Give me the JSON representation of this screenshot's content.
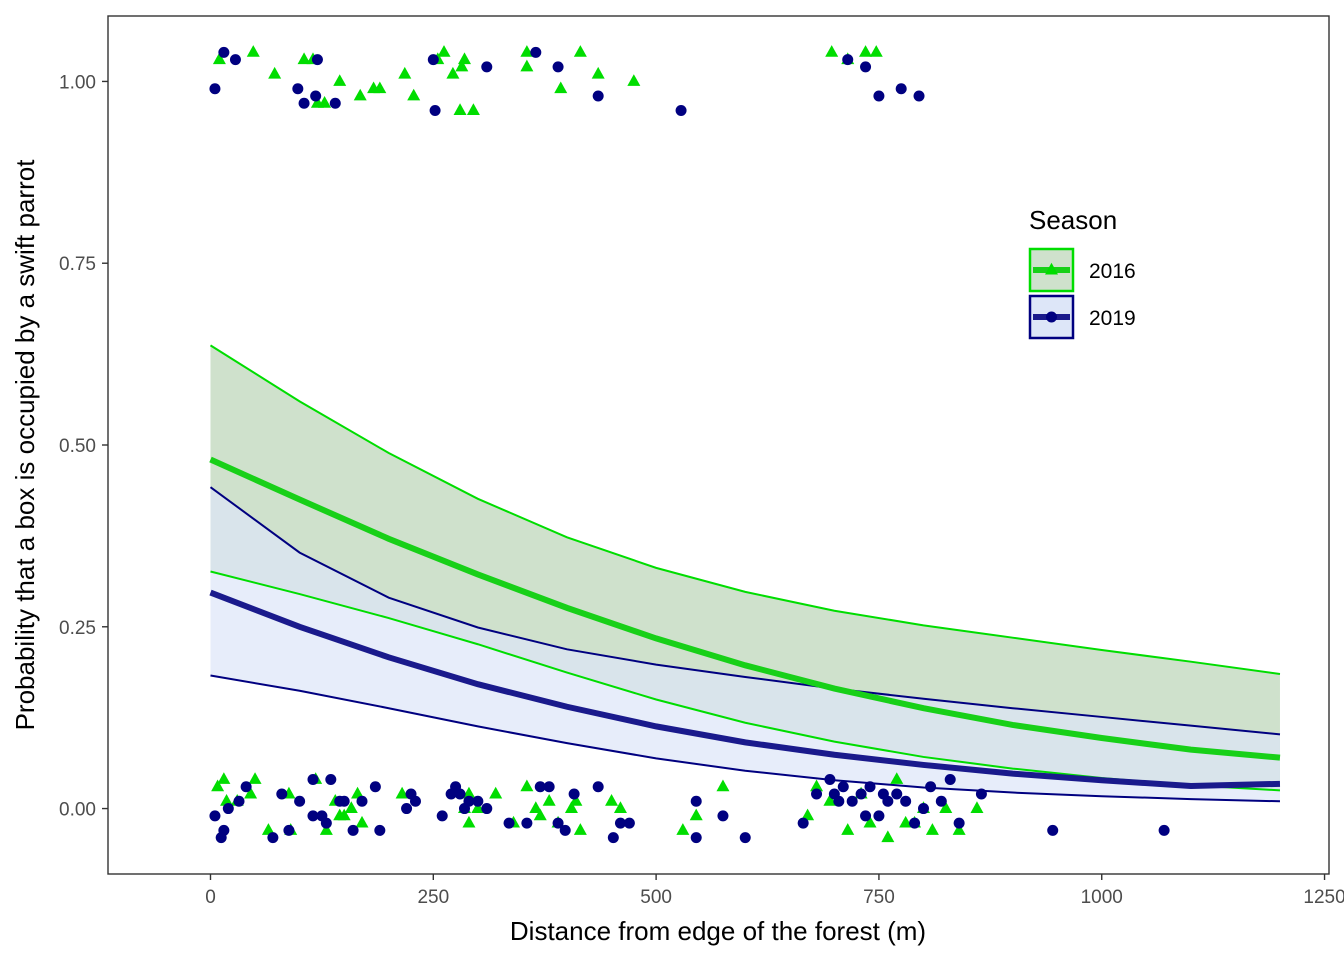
{
  "chart_data": {
    "type": "line",
    "xlabel": "Distance from edge of the forest (m)",
    "ylabel": "Probability that a box is occupied by a swift parrot",
    "xlim": [
      -115,
      1255
    ],
    "ylim": [
      -0.09,
      1.09
    ],
    "x_ticks": [
      0,
      250,
      500,
      750,
      1000,
      1250
    ],
    "x_tick_labels": [
      "0",
      "250",
      "500",
      "750",
      "1000",
      "1250"
    ],
    "y_ticks": [
      0,
      0.25,
      0.5,
      0.75,
      1
    ],
    "y_tick_labels": [
      "0.00",
      "0.25",
      "0.50",
      "0.75",
      "1.00"
    ],
    "grid": false,
    "legend": {
      "title": "Season",
      "position": "right",
      "entries": [
        "2016",
        "2019"
      ]
    },
    "series": [
      {
        "name": "2016",
        "color": "#00dd00",
        "ribbon_fill": "#cfe1cc",
        "marker": "triangle",
        "fit": {
          "x": [
            0,
            100,
            200,
            300,
            400,
            500,
            600,
            700,
            800,
            900,
            1000,
            1100,
            1200
          ],
          "y": [
            0.48,
            0.425,
            0.371,
            0.322,
            0.276,
            0.234,
            0.197,
            0.165,
            0.138,
            0.115,
            0.097,
            0.081,
            0.07
          ],
          "lower": [
            0.326,
            0.295,
            0.262,
            0.226,
            0.187,
            0.15,
            0.118,
            0.092,
            0.071,
            0.055,
            0.042,
            0.032,
            0.025
          ],
          "upper": [
            0.637,
            0.56,
            0.489,
            0.426,
            0.373,
            0.331,
            0.298,
            0.272,
            0.252,
            0.235,
            0.218,
            0.202,
            0.185
          ]
        },
        "points": [
          [
            10,
            1.03
          ],
          [
            48,
            1.04
          ],
          [
            72,
            1.01
          ],
          [
            105,
            1.03
          ],
          [
            115,
            1.03
          ],
          [
            120,
            0.97
          ],
          [
            128,
            0.97
          ],
          [
            145,
            1.0
          ],
          [
            168,
            0.98
          ],
          [
            183,
            0.99
          ],
          [
            190,
            0.99
          ],
          [
            218,
            1.01
          ],
          [
            228,
            0.98
          ],
          [
            255,
            1.03
          ],
          [
            262,
            1.04
          ],
          [
            272,
            1.01
          ],
          [
            280,
            0.96
          ],
          [
            282,
            1.02
          ],
          [
            285,
            1.03
          ],
          [
            295,
            0.96
          ],
          [
            355,
            1.04
          ],
          [
            355,
            1.02
          ],
          [
            393,
            0.99
          ],
          [
            415,
            1.04
          ],
          [
            435,
            1.01
          ],
          [
            475,
            1.0
          ],
          [
            697,
            1.04
          ],
          [
            715,
            1.03
          ],
          [
            735,
            1.04
          ],
          [
            747,
            1.04
          ],
          [
            8,
            0.03
          ],
          [
            15,
            0.04
          ],
          [
            18,
            0.01
          ],
          [
            30,
            0.01
          ],
          [
            45,
            0.02
          ],
          [
            50,
            0.04
          ],
          [
            65,
            -0.03
          ],
          [
            88,
            0.02
          ],
          [
            90,
            -0.03
          ],
          [
            118,
            0.04
          ],
          [
            130,
            -0.03
          ],
          [
            140,
            0.01
          ],
          [
            145,
            -0.01
          ],
          [
            150,
            -0.01
          ],
          [
            158,
            0.0
          ],
          [
            165,
            0.02
          ],
          [
            170,
            -0.02
          ],
          [
            215,
            0.02
          ],
          [
            285,
            0.0
          ],
          [
            290,
            -0.02
          ],
          [
            290,
            0.02
          ],
          [
            300,
            0.0
          ],
          [
            320,
            0.02
          ],
          [
            340,
            -0.02
          ],
          [
            355,
            0.03
          ],
          [
            365,
            0.0
          ],
          [
            370,
            -0.01
          ],
          [
            380,
            0.01
          ],
          [
            390,
            -0.02
          ],
          [
            405,
            0.0
          ],
          [
            410,
            0.01
          ],
          [
            415,
            -0.03
          ],
          [
            450,
            0.01
          ],
          [
            460,
            0.0
          ],
          [
            530,
            -0.03
          ],
          [
            545,
            -0.01
          ],
          [
            575,
            0.03
          ],
          [
            670,
            -0.01
          ],
          [
            680,
            0.03
          ],
          [
            695,
            0.01
          ],
          [
            715,
            -0.03
          ],
          [
            730,
            0.02
          ],
          [
            740,
            -0.02
          ],
          [
            760,
            -0.04
          ],
          [
            770,
            0.04
          ],
          [
            780,
            -0.02
          ],
          [
            790,
            -0.02
          ],
          [
            800,
            0.0
          ],
          [
            810,
            -0.03
          ],
          [
            825,
            0.0
          ],
          [
            840,
            -0.03
          ],
          [
            860,
            0.0
          ]
        ]
      },
      {
        "name": "2019",
        "color": "#000080",
        "fit_color": "#1a1a8c",
        "ribbon_fill": "#dde6f8",
        "marker": "circle",
        "fit": {
          "x": [
            0,
            100,
            200,
            300,
            400,
            500,
            600,
            700,
            800,
            900,
            1000,
            1100,
            1200
          ],
          "y": [
            0.297,
            0.25,
            0.208,
            0.171,
            0.14,
            0.113,
            0.091,
            0.074,
            0.06,
            0.048,
            0.039,
            0.031,
            0.034
          ],
          "lower": [
            0.183,
            0.162,
            0.138,
            0.113,
            0.09,
            0.069,
            0.052,
            0.039,
            0.029,
            0.022,
            0.017,
            0.013,
            0.01
          ],
          "upper": [
            0.442,
            0.352,
            0.29,
            0.249,
            0.219,
            0.198,
            0.181,
            0.165,
            0.151,
            0.138,
            0.126,
            0.114,
            0.102
          ]
        },
        "points": [
          [
            15,
            1.04
          ],
          [
            28,
            1.03
          ],
          [
            5,
            0.99
          ],
          [
            120,
            1.03
          ],
          [
            98,
            0.99
          ],
          [
            105,
            0.97
          ],
          [
            118,
            0.98
          ],
          [
            140,
            0.97
          ],
          [
            250,
            1.03
          ],
          [
            252,
            0.96
          ],
          [
            310,
            1.02
          ],
          [
            365,
            1.04
          ],
          [
            390,
            1.02
          ],
          [
            435,
            0.98
          ],
          [
            528,
            0.96
          ],
          [
            715,
            1.03
          ],
          [
            735,
            1.02
          ],
          [
            750,
            0.98
          ],
          [
            775,
            0.99
          ],
          [
            795,
            0.98
          ],
          [
            5,
            -0.01
          ],
          [
            12,
            -0.04
          ],
          [
            15,
            -0.03
          ],
          [
            20,
            0.0
          ],
          [
            32,
            0.01
          ],
          [
            40,
            0.03
          ],
          [
            70,
            -0.04
          ],
          [
            80,
            0.02
          ],
          [
            88,
            -0.03
          ],
          [
            100,
            0.01
          ],
          [
            115,
            0.04
          ],
          [
            115,
            -0.01
          ],
          [
            125,
            -0.01
          ],
          [
            130,
            -0.02
          ],
          [
            135,
            0.04
          ],
          [
            145,
            0.01
          ],
          [
            150,
            0.01
          ],
          [
            160,
            -0.03
          ],
          [
            170,
            0.01
          ],
          [
            185,
            0.03
          ],
          [
            190,
            -0.03
          ],
          [
            220,
            0.0
          ],
          [
            225,
            0.02
          ],
          [
            230,
            0.01
          ],
          [
            260,
            -0.01
          ],
          [
            270,
            0.02
          ],
          [
            275,
            0.03
          ],
          [
            280,
            0.02
          ],
          [
            285,
            0.0
          ],
          [
            290,
            0.01
          ],
          [
            300,
            0.01
          ],
          [
            310,
            0.0
          ],
          [
            335,
            -0.02
          ],
          [
            355,
            -0.02
          ],
          [
            370,
            0.03
          ],
          [
            380,
            0.03
          ],
          [
            390,
            -0.02
          ],
          [
            398,
            -0.03
          ],
          [
            408,
            0.02
          ],
          [
            435,
            0.03
          ],
          [
            452,
            -0.04
          ],
          [
            460,
            -0.02
          ],
          [
            470,
            -0.02
          ],
          [
            545,
            0.01
          ],
          [
            545,
            -0.04
          ],
          [
            575,
            -0.01
          ],
          [
            600,
            -0.04
          ],
          [
            665,
            -0.02
          ],
          [
            680,
            0.02
          ],
          [
            695,
            0.04
          ],
          [
            700,
            0.02
          ],
          [
            705,
            0.01
          ],
          [
            710,
            0.03
          ],
          [
            720,
            0.01
          ],
          [
            730,
            0.02
          ],
          [
            735,
            -0.01
          ],
          [
            740,
            0.03
          ],
          [
            750,
            -0.01
          ],
          [
            755,
            0.02
          ],
          [
            760,
            0.01
          ],
          [
            770,
            0.02
          ],
          [
            780,
            0.01
          ],
          [
            790,
            -0.02
          ],
          [
            800,
            0.0
          ],
          [
            808,
            0.03
          ],
          [
            820,
            0.01
          ],
          [
            830,
            0.04
          ],
          [
            840,
            -0.02
          ],
          [
            865,
            0.02
          ],
          [
            945,
            -0.03
          ],
          [
            1070,
            -0.03
          ]
        ]
      }
    ]
  }
}
